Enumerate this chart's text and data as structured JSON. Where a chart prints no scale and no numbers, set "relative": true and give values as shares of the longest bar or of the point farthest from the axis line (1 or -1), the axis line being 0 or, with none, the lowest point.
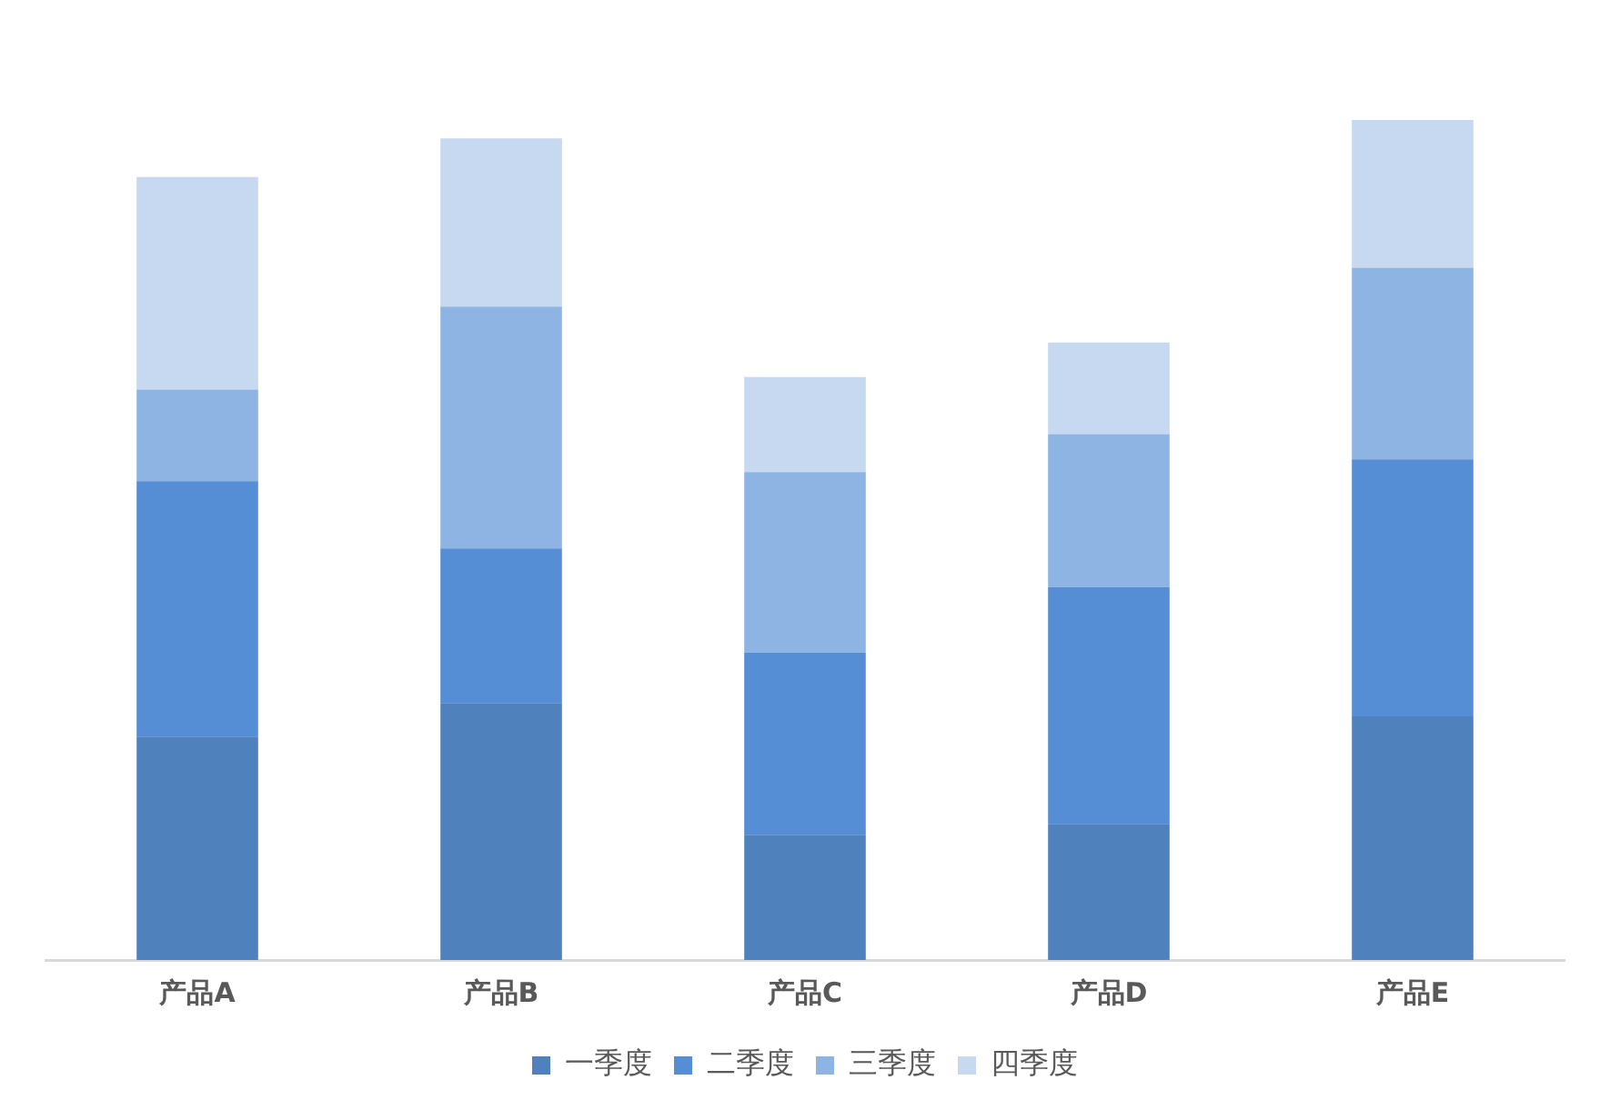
{
  "chart_data": {
    "type": "bar",
    "stacked": true,
    "relative": true,
    "legend": "bottom",
    "categories": [
      "产品A",
      "产品B",
      "产品C",
      "产品D",
      "产品E"
    ],
    "series": [
      {
        "name": "一季度",
        "color": "#4f81bd",
        "values": [
          0.266,
          0.306,
          0.149,
          0.162,
          0.29
        ]
      },
      {
        "name": "二季度",
        "color": "#558ed5",
        "values": [
          0.304,
          0.184,
          0.217,
          0.282,
          0.306
        ]
      },
      {
        "name": "三季度",
        "color": "#8eb4e3",
        "values": [
          0.109,
          0.288,
          0.215,
          0.182,
          0.228
        ]
      },
      {
        "name": "四季度",
        "color": "#c6d9f1",
        "values": [
          0.253,
          0.2,
          0.113,
          0.109,
          0.176
        ]
      }
    ]
  }
}
